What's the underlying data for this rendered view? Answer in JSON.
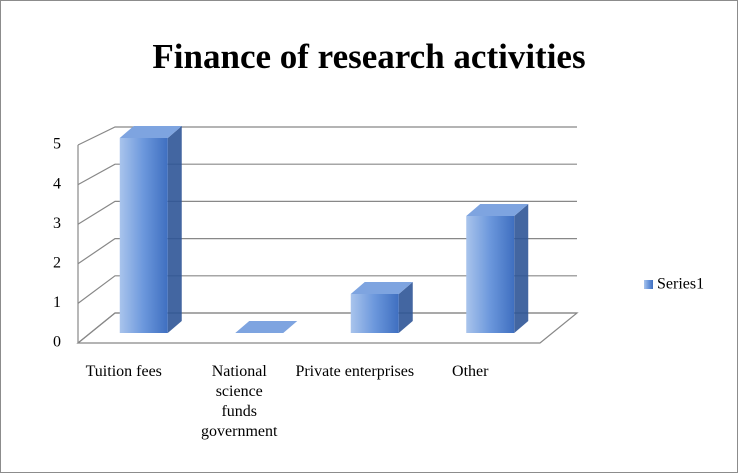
{
  "chart_data": {
    "type": "bar3d",
    "title": "Finance of research activities",
    "categories": [
      "Tuition fees",
      "National science funds government",
      "Private enterprises",
      "Other"
    ],
    "series": [
      {
        "name": "Series1",
        "color": "#4f81bd",
        "values": [
          5,
          0,
          1,
          3
        ]
      }
    ],
    "ylim": [
      0,
      5
    ],
    "yticks": [
      0,
      1,
      2,
      3,
      4,
      5
    ],
    "grid": true,
    "legend": "right"
  }
}
